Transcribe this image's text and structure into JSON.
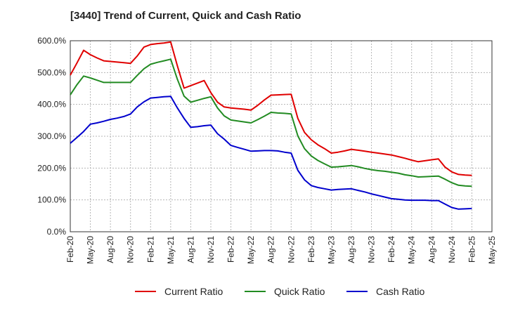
{
  "chart_data": {
    "type": "line",
    "title": "[3440]  Trend of Current, Quick and Cash Ratio",
    "x": [
      "2020-02",
      "2020-03",
      "2020-04",
      "2020-05",
      "2020-06",
      "2020-07",
      "2020-08",
      "2020-09",
      "2020-10",
      "2020-11",
      "2020-12",
      "2021-01",
      "2021-02",
      "2021-03",
      "2021-04",
      "2021-05",
      "2021-06",
      "2021-07",
      "2021-08",
      "2021-09",
      "2021-10",
      "2021-11",
      "2021-12",
      "2022-01",
      "2022-02",
      "2022-03",
      "2022-04",
      "2022-05",
      "2022-06",
      "2022-07",
      "2022-08",
      "2022-09",
      "2022-10",
      "2022-11",
      "2022-12",
      "2023-01",
      "2023-02",
      "2023-03",
      "2023-04",
      "2023-05",
      "2023-06",
      "2023-07",
      "2023-08",
      "2023-09",
      "2023-10",
      "2023-11",
      "2023-12",
      "2024-01",
      "2024-02",
      "2024-03",
      "2024-04",
      "2024-05",
      "2024-06",
      "2024-07",
      "2024-08",
      "2024-09",
      "2024-10",
      "2024-11",
      "2024-12",
      "2025-01",
      "2025-02"
    ],
    "x_ticks": [
      "Feb-20",
      "May-20",
      "Aug-20",
      "Nov-20",
      "Feb-21",
      "May-21",
      "Aug-21",
      "Nov-21",
      "Feb-22",
      "May-22",
      "Aug-22",
      "Nov-22",
      "Feb-23",
      "May-23",
      "Aug-23",
      "Nov-23",
      "Feb-24",
      "May-24",
      "Aug-24",
      "Nov-24",
      "Feb-25",
      "May-25"
    ],
    "y_ticks": [
      "0.0%",
      "100.0%",
      "200.0%",
      "300.0%",
      "400.0%",
      "500.0%",
      "600.0%"
    ],
    "ylim": [
      0,
      600
    ],
    "grid": true,
    "legend_position": "bottom",
    "series": [
      {
        "name": "Current Ratio",
        "color": "#e00000",
        "values": [
          492,
          530,
          570,
          556,
          546,
          537,
          535,
          533,
          531,
          529,
          552,
          580,
          588,
          591,
          593,
          596,
          521,
          451,
          459,
          467,
          475,
          437,
          407,
          392,
          389,
          387,
          385,
          382,
          397,
          414,
          429,
          430,
          431,
          432,
          356,
          312,
          289,
          273,
          261,
          247,
          250,
          254,
          259,
          256,
          253,
          250,
          247,
          244,
          241,
          236,
          231,
          225,
          220,
          223,
          226,
          229,
          203,
          188,
          180,
          178,
          177
        ]
      },
      {
        "name": "Quick Ratio",
        "color": "#228b22",
        "values": [
          430,
          462,
          489,
          483,
          476,
          469,
          469,
          469,
          469,
          469,
          491,
          512,
          526,
          532,
          537,
          542,
          479,
          426,
          407,
          413,
          419,
          424,
          389,
          364,
          351,
          348,
          345,
          342,
          352,
          363,
          375,
          373,
          372,
          370,
          301,
          261,
          238,
          224,
          213,
          203,
          204,
          206,
          208,
          204,
          199,
          195,
          192,
          190,
          187,
          184,
          179,
          176,
          172,
          173,
          174,
          175,
          165,
          154,
          146,
          144,
          143
        ]
      },
      {
        "name": "Cash Ratio",
        "color": "#0000cd",
        "values": [
          278,
          296,
          315,
          338,
          342,
          347,
          353,
          357,
          362,
          370,
          392,
          408,
          420,
          422,
          424,
          425,
          389,
          356,
          328,
          330,
          333,
          335,
          308,
          291,
          271,
          265,
          259,
          253,
          254,
          255,
          255,
          254,
          250,
          247,
          193,
          163,
          145,
          139,
          135,
          131,
          133,
          134,
          135,
          130,
          125,
          119,
          114,
          109,
          104,
          102,
          100,
          99,
          99,
          99,
          98,
          98,
          87,
          76,
          71,
          72,
          73
        ]
      }
    ]
  }
}
